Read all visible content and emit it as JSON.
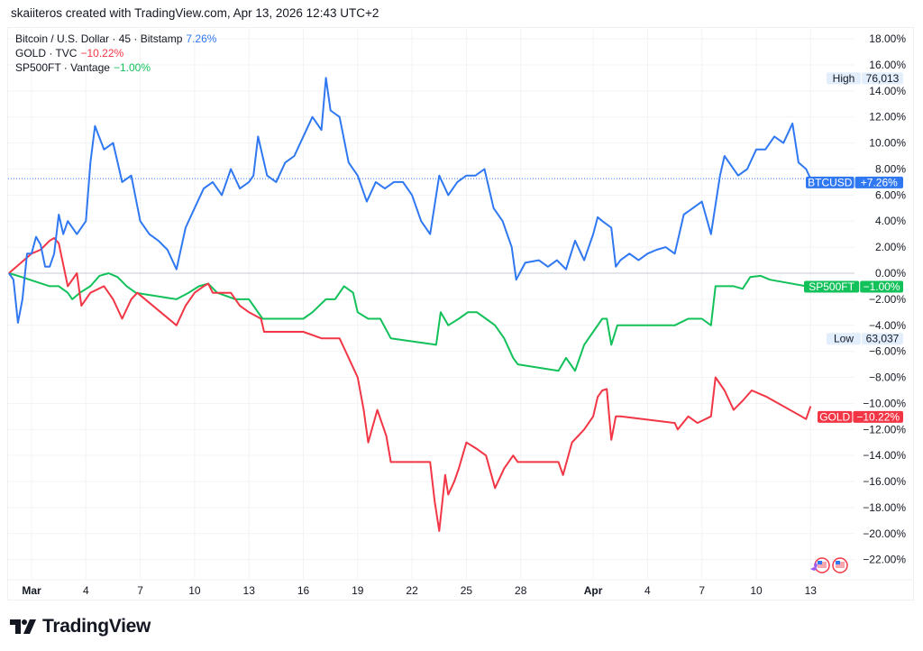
{
  "header": {
    "attribution": "skaiiteros created with TradingView.com, Apr 13, 2026 12:43 UTC+2"
  },
  "legend": [
    {
      "label": "Bitcoin / U.S. Dollar · 45 · Bitstamp",
      "value": "7.26%",
      "color": "#2f78f2"
    },
    {
      "label": "GOLD · TVC",
      "value": "−10.22%",
      "color": "#f23645"
    },
    {
      "label": "SP500FT · Vantage",
      "value": "−1.00%",
      "color": "#13c15a"
    }
  ],
  "logo": {
    "text": "TradingView"
  },
  "chart_data": {
    "type": "line",
    "ylabel": "",
    "xlabel": "",
    "y_unit": "percent change",
    "ylim": [
      -23.5,
      19
    ],
    "grid": true,
    "y_ticks": [
      "18.00%",
      "16.00%",
      "14.00%",
      "12.00%",
      "10.00%",
      "8.00%",
      "6.00%",
      "4.00%",
      "2.00%",
      "0.00%",
      "−2.00%",
      "−4.00%",
      "−6.00%",
      "−8.00%",
      "−10.00%",
      "−12.00%",
      "−14.00%",
      "−16.00%",
      "−18.00%",
      "−20.00%",
      "−22.00%"
    ],
    "y_tick_values": [
      18,
      16,
      14,
      12,
      10,
      8,
      6,
      4,
      2,
      0,
      -2,
      -4,
      -6,
      -8,
      -10,
      -12,
      -14,
      -16,
      -18,
      -20,
      -22
    ],
    "x_ticks": [
      {
        "label": "Mar",
        "date": "2026-03-01",
        "bold": true
      },
      {
        "label": "4",
        "date": "2026-03-04"
      },
      {
        "label": "7",
        "date": "2026-03-07"
      },
      {
        "label": "10",
        "date": "2026-03-10"
      },
      {
        "label": "13",
        "date": "2026-03-13"
      },
      {
        "label": "16",
        "date": "2026-03-16"
      },
      {
        "label": "19",
        "date": "2026-03-19"
      },
      {
        "label": "22",
        "date": "2026-03-22"
      },
      {
        "label": "25",
        "date": "2026-03-25"
      },
      {
        "label": "28",
        "date": "2026-03-28"
      },
      {
        "label": "Apr",
        "date": "2026-04-01",
        "bold": true
      },
      {
        "label": "4",
        "date": "2026-04-04"
      },
      {
        "label": "7",
        "date": "2026-04-07"
      },
      {
        "label": "10",
        "date": "2026-04-10"
      },
      {
        "label": "13",
        "date": "2026-04-13"
      }
    ],
    "high_low": {
      "high_label": "High",
      "high_value": "76,013",
      "high_pct": 16,
      "low_label": "Low",
      "low_value": "63,037",
      "low_pct": -4.5
    },
    "series": [
      {
        "name": "BTCUSD",
        "badge_value": "+7.26%",
        "color": "#2f78f2",
        "last": 7.26,
        "points": [
          [
            "2026-02-27T18",
            0
          ],
          [
            "2026-02-28T00",
            -0.5
          ],
          [
            "2026-02-28T06",
            -3.8
          ],
          [
            "2026-02-28T12",
            -2
          ],
          [
            "2026-02-28T18",
            1.5
          ],
          [
            "2026-03-01T00",
            1.5
          ],
          [
            "2026-03-01T06",
            2.8
          ],
          [
            "2026-03-01T12",
            2.2
          ],
          [
            "2026-03-01T18",
            0.5
          ],
          [
            "2026-03-02T00",
            0.5
          ],
          [
            "2026-03-02T06",
            1.5
          ],
          [
            "2026-03-02T12",
            4.5
          ],
          [
            "2026-03-02T18",
            3
          ],
          [
            "2026-03-03T00",
            4
          ],
          [
            "2026-03-03T12",
            3
          ],
          [
            "2026-03-04T00",
            4
          ],
          [
            "2026-03-04T06",
            8.5
          ],
          [
            "2026-03-04T12",
            11.3
          ],
          [
            "2026-03-05T00",
            9.5
          ],
          [
            "2026-03-05T12",
            10
          ],
          [
            "2026-03-06T00",
            7
          ],
          [
            "2026-03-06T12",
            7.5
          ],
          [
            "2026-03-07T00",
            4
          ],
          [
            "2026-03-07T12",
            3
          ],
          [
            "2026-03-08T00",
            2.5
          ],
          [
            "2026-03-08T12",
            1.8
          ],
          [
            "2026-03-09T00",
            0.3
          ],
          [
            "2026-03-09T12",
            3.5
          ],
          [
            "2026-03-10T00",
            5
          ],
          [
            "2026-03-10T12",
            6.5
          ],
          [
            "2026-03-11T00",
            7
          ],
          [
            "2026-03-11T12",
            6
          ],
          [
            "2026-03-12T00",
            8
          ],
          [
            "2026-03-12T12",
            6.5
          ],
          [
            "2026-03-13T00",
            7
          ],
          [
            "2026-03-13T06",
            7.5
          ],
          [
            "2026-03-13T12",
            10.5
          ],
          [
            "2026-03-14T00",
            7.5
          ],
          [
            "2026-03-14T12",
            7
          ],
          [
            "2026-03-15T00",
            8.5
          ],
          [
            "2026-03-15T12",
            9
          ],
          [
            "2026-03-16T00",
            10.5
          ],
          [
            "2026-03-16T12",
            12
          ],
          [
            "2026-03-17T00",
            11
          ],
          [
            "2026-03-17T06",
            15
          ],
          [
            "2026-03-17T12",
            12.5
          ],
          [
            "2026-03-18T00",
            12
          ],
          [
            "2026-03-18T12",
            8.5
          ],
          [
            "2026-03-19T00",
            7.5
          ],
          [
            "2026-03-19T12",
            5.5
          ],
          [
            "2026-03-20T00",
            7
          ],
          [
            "2026-03-20T12",
            6.5
          ],
          [
            "2026-03-21T00",
            7
          ],
          [
            "2026-03-21T12",
            7
          ],
          [
            "2026-03-22T00",
            6
          ],
          [
            "2026-03-22T12",
            4
          ],
          [
            "2026-03-23T00",
            3
          ],
          [
            "2026-03-23T12",
            7.5
          ],
          [
            "2026-03-24T00",
            6
          ],
          [
            "2026-03-24T12",
            7
          ],
          [
            "2026-03-25T00",
            7.5
          ],
          [
            "2026-03-25T12",
            7.5
          ],
          [
            "2026-03-26T00",
            8
          ],
          [
            "2026-03-26T12",
            5
          ],
          [
            "2026-03-27T00",
            4
          ],
          [
            "2026-03-27T12",
            2
          ],
          [
            "2026-03-27T18",
            -0.5
          ],
          [
            "2026-03-28T06",
            0.8
          ],
          [
            "2026-03-29T00",
            1
          ],
          [
            "2026-03-29T12",
            0.5
          ],
          [
            "2026-03-30T00",
            1
          ],
          [
            "2026-03-30T12",
            0.3
          ],
          [
            "2026-03-31T00",
            2.5
          ],
          [
            "2026-03-31T12",
            1
          ],
          [
            "2026-04-01T00",
            3
          ],
          [
            "2026-04-01T06",
            4.3
          ],
          [
            "2026-04-01T12",
            4
          ],
          [
            "2026-04-02T00",
            3.5
          ],
          [
            "2026-04-02T06",
            0.5
          ],
          [
            "2026-04-02T12",
            1
          ],
          [
            "2026-04-03T00",
            1.5
          ],
          [
            "2026-04-03T12",
            1
          ],
          [
            "2026-04-04T00",
            1.5
          ],
          [
            "2026-04-04T12",
            1.8
          ],
          [
            "2026-04-05T00",
            2
          ],
          [
            "2026-04-05T12",
            1.5
          ],
          [
            "2026-04-06T00",
            4.5
          ],
          [
            "2026-04-06T12",
            5
          ],
          [
            "2026-04-07T00",
            5.5
          ],
          [
            "2026-04-07T12",
            3
          ],
          [
            "2026-04-08T00",
            7.5
          ],
          [
            "2026-04-08T06",
            9
          ],
          [
            "2026-04-08T12",
            8.5
          ],
          [
            "2026-04-09T00",
            7.5
          ],
          [
            "2026-04-09T12",
            8
          ],
          [
            "2026-04-10T00",
            9.5
          ],
          [
            "2026-04-10T12",
            9.5
          ],
          [
            "2026-04-11T00",
            10.5
          ],
          [
            "2026-04-11T12",
            10
          ],
          [
            "2026-04-12T00",
            11.5
          ],
          [
            "2026-04-12T08",
            8.5
          ],
          [
            "2026-04-12T18",
            8
          ],
          [
            "2026-04-13T00",
            7.26
          ]
        ]
      },
      {
        "name": "GOLD",
        "badge_value": "−10.22%",
        "color": "#f23645",
        "last": -10.22,
        "points": [
          [
            "2026-02-27T18",
            0
          ],
          [
            "2026-03-01T00",
            1.5
          ],
          [
            "2026-03-01T12",
            1.8
          ],
          [
            "2026-03-02T00",
            2.5
          ],
          [
            "2026-03-02T06",
            2.7
          ],
          [
            "2026-03-02T12",
            2.3
          ],
          [
            "2026-03-03T00",
            -1
          ],
          [
            "2026-03-03T12",
            0
          ],
          [
            "2026-03-03T18",
            -2.5
          ],
          [
            "2026-03-04T06",
            -1.5
          ],
          [
            "2026-03-05T00",
            -1
          ],
          [
            "2026-03-05T12",
            -2
          ],
          [
            "2026-03-06T00",
            -3.5
          ],
          [
            "2026-03-06T12",
            -2
          ],
          [
            "2026-03-06T20",
            -1.5
          ],
          [
            "2026-03-09T00",
            -4
          ],
          [
            "2026-03-09T12",
            -2.5
          ],
          [
            "2026-03-10T00",
            -1.5
          ],
          [
            "2026-03-10T12",
            -1
          ],
          [
            "2026-03-10T18",
            -0.8
          ],
          [
            "2026-03-11T00",
            -1.5
          ],
          [
            "2026-03-12T00",
            -1.5
          ],
          [
            "2026-03-12T12",
            -2.5
          ],
          [
            "2026-03-13T00",
            -3
          ],
          [
            "2026-03-13T16",
            -3.5
          ],
          [
            "2026-03-13T20",
            -4.5
          ],
          [
            "2026-03-16T00",
            -4.5
          ],
          [
            "2026-03-17T00",
            -5
          ],
          [
            "2026-03-18T00",
            -5
          ],
          [
            "2026-03-18T12",
            -6.5
          ],
          [
            "2026-03-19T00",
            -8
          ],
          [
            "2026-03-19T08",
            -10.5
          ],
          [
            "2026-03-19T14",
            -13
          ],
          [
            "2026-03-20T02",
            -10.5
          ],
          [
            "2026-03-20T14",
            -12.5
          ],
          [
            "2026-03-20T20",
            -14.5
          ],
          [
            "2026-03-23T00",
            -14.5
          ],
          [
            "2026-03-23T06",
            -17.5
          ],
          [
            "2026-03-23T12",
            -19.8
          ],
          [
            "2026-03-23T20",
            -15.5
          ],
          [
            "2026-03-24T00",
            -17
          ],
          [
            "2026-03-24T08",
            -16
          ],
          [
            "2026-03-24T14",
            -15
          ],
          [
            "2026-03-25T00",
            -13
          ],
          [
            "2026-03-25T14",
            -13.5
          ],
          [
            "2026-03-26T02",
            -14
          ],
          [
            "2026-03-26T14",
            -16.5
          ],
          [
            "2026-03-27T02",
            -15
          ],
          [
            "2026-03-27T14",
            -14
          ],
          [
            "2026-03-27T20",
            -14.5
          ],
          [
            "2026-03-30T02",
            -14.5
          ],
          [
            "2026-03-30T08",
            -15.5
          ],
          [
            "2026-03-30T20",
            -13
          ],
          [
            "2026-03-31T12",
            -12
          ],
          [
            "2026-04-01T00",
            -11
          ],
          [
            "2026-04-01T06",
            -9.5
          ],
          [
            "2026-04-01T12",
            -9
          ],
          [
            "2026-04-01T18",
            -8.9
          ],
          [
            "2026-04-02T00",
            -12.8
          ],
          [
            "2026-04-02T06",
            -11
          ],
          [
            "2026-04-02T12",
            -11
          ],
          [
            "2026-04-05T12",
            -11.5
          ],
          [
            "2026-04-05T16",
            -12
          ],
          [
            "2026-04-06T06",
            -11
          ],
          [
            "2026-04-06T18",
            -11.5
          ],
          [
            "2026-04-07T12",
            -11
          ],
          [
            "2026-04-07T18",
            -8
          ],
          [
            "2026-04-08T06",
            -9
          ],
          [
            "2026-04-08T18",
            -10.5
          ],
          [
            "2026-04-09T06",
            -9.8
          ],
          [
            "2026-04-09T18",
            -9
          ],
          [
            "2026-04-10T14",
            -9.5
          ],
          [
            "2026-04-12T18",
            -11.2
          ],
          [
            "2026-04-13T00",
            -10.22
          ]
        ]
      },
      {
        "name": "SP500FT",
        "badge_value": "−1.00%",
        "color": "#13c15a",
        "last": -1.0,
        "points": [
          [
            "2026-02-27T18",
            0
          ],
          [
            "2026-02-28T06",
            -0.2
          ],
          [
            "2026-03-02T00",
            -1
          ],
          [
            "2026-03-02T12",
            -1
          ],
          [
            "2026-03-03T00",
            -1.5
          ],
          [
            "2026-03-03T06",
            -2
          ],
          [
            "2026-03-03T16",
            -1.5
          ],
          [
            "2026-03-04T06",
            -1
          ],
          [
            "2026-03-04T18",
            -0.2
          ],
          [
            "2026-03-05T06",
            0
          ],
          [
            "2026-03-05T18",
            -0.3
          ],
          [
            "2026-03-06T06",
            -1
          ],
          [
            "2026-03-06T18",
            -1.5
          ],
          [
            "2026-03-09T00",
            -2
          ],
          [
            "2026-03-09T16",
            -1.5
          ],
          [
            "2026-03-10T06",
            -1
          ],
          [
            "2026-03-10T18",
            -0.8
          ],
          [
            "2026-03-11T06",
            -1.5
          ],
          [
            "2026-03-12T06",
            -2
          ],
          [
            "2026-03-13T00",
            -2
          ],
          [
            "2026-03-13T18",
            -3.5
          ],
          [
            "2026-03-16T00",
            -3.5
          ],
          [
            "2026-03-16T12",
            -3
          ],
          [
            "2026-03-17T06",
            -2
          ],
          [
            "2026-03-17T18",
            -2
          ],
          [
            "2026-03-18T06",
            -1
          ],
          [
            "2026-03-18T18",
            -1.5
          ],
          [
            "2026-03-19T00",
            -3
          ],
          [
            "2026-03-19T14",
            -3.5
          ],
          [
            "2026-03-20T06",
            -3.5
          ],
          [
            "2026-03-20T20",
            -5
          ],
          [
            "2026-03-23T08",
            -5.5
          ],
          [
            "2026-03-23T14",
            -3
          ],
          [
            "2026-03-24T00",
            -4
          ],
          [
            "2026-03-24T14",
            -3.5
          ],
          [
            "2026-03-25T02",
            -3
          ],
          [
            "2026-03-25T14",
            -3
          ],
          [
            "2026-03-26T02",
            -3.5
          ],
          [
            "2026-03-26T14",
            -4
          ],
          [
            "2026-03-27T02",
            -5
          ],
          [
            "2026-03-27T14",
            -6.5
          ],
          [
            "2026-03-27T20",
            -7
          ],
          [
            "2026-03-30T02",
            -7.5
          ],
          [
            "2026-03-30T12",
            -6.5
          ],
          [
            "2026-03-31T00",
            -7.5
          ],
          [
            "2026-03-31T12",
            -5.5
          ],
          [
            "2026-04-01T00",
            -4.5
          ],
          [
            "2026-04-01T12",
            -3.5
          ],
          [
            "2026-04-01T18",
            -3.5
          ],
          [
            "2026-04-02T00",
            -5.5
          ],
          [
            "2026-04-02T08",
            -4
          ],
          [
            "2026-04-05T12",
            -4
          ],
          [
            "2026-04-06T06",
            -3.5
          ],
          [
            "2026-04-07T00",
            -3.5
          ],
          [
            "2026-04-07T12",
            -4
          ],
          [
            "2026-04-07T18",
            -1
          ],
          [
            "2026-04-08T06",
            -1
          ],
          [
            "2026-04-08T18",
            -1
          ],
          [
            "2026-04-09T06",
            -1.2
          ],
          [
            "2026-04-09T16",
            -0.3
          ],
          [
            "2026-04-10T06",
            -0.2
          ],
          [
            "2026-04-10T18",
            -0.5
          ],
          [
            "2026-04-12T18",
            -1
          ]
        ]
      }
    ]
  }
}
